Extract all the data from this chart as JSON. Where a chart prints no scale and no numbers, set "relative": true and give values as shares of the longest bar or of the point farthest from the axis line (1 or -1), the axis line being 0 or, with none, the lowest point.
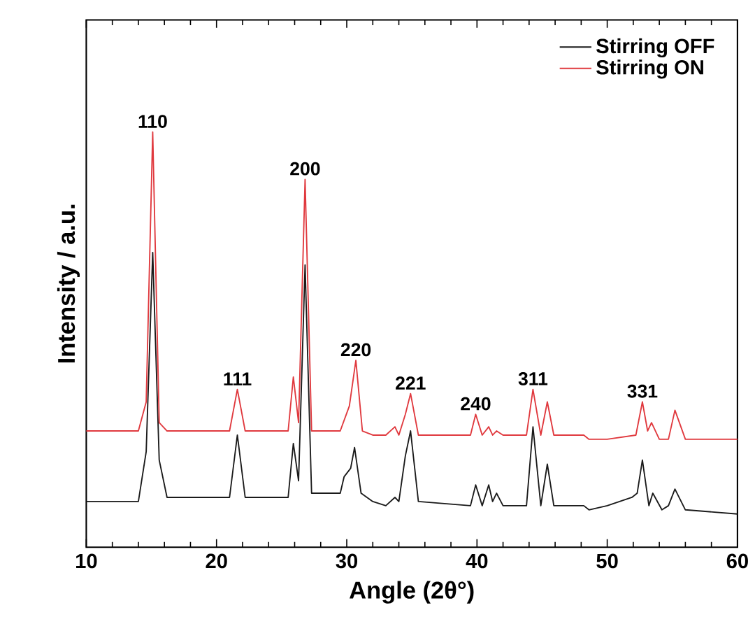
{
  "chart_data": {
    "type": "line",
    "xlabel": "Angle (2θ°)",
    "ylabel": "Intensity / a.u.",
    "relative": true,
    "xlim": [
      10,
      60
    ],
    "xticks": [
      10,
      20,
      30,
      40,
      50,
      60
    ],
    "tick_labels": "x",
    "legend": "top right",
    "grid": false,
    "marker": "none",
    "line_style": "solid",
    "series": [
      {
        "name": "Stirring OFF",
        "color": "#1a1a1a",
        "x": [
          10,
          14.0,
          14.6,
          15.1,
          15.6,
          16.2,
          21.0,
          21.6,
          22.2,
          25.5,
          25.9,
          26.3,
          26.8,
          27.3,
          29.5,
          29.8,
          30.3,
          30.6,
          31.1,
          32.0,
          33.0,
          33.7,
          34.0,
          34.5,
          34.9,
          35.5,
          39.5,
          39.9,
          40.4,
          40.9,
          41.2,
          41.5,
          42.0,
          43.8,
          44.3,
          44.9,
          45.4,
          45.9,
          48.2,
          48.6,
          50.0,
          51.9,
          52.3,
          52.7,
          53.2,
          53.5,
          54.2,
          54.7,
          55.2,
          56.0,
          60
        ],
        "values": [
          0.11,
          0.11,
          0.23,
          0.71,
          0.21,
          0.12,
          0.12,
          0.27,
          0.12,
          0.12,
          0.25,
          0.16,
          0.68,
          0.13,
          0.13,
          0.17,
          0.19,
          0.24,
          0.13,
          0.11,
          0.1,
          0.12,
          0.11,
          0.22,
          0.28,
          0.11,
          0.1,
          0.15,
          0.1,
          0.15,
          0.11,
          0.13,
          0.1,
          0.1,
          0.29,
          0.1,
          0.2,
          0.1,
          0.1,
          0.09,
          0.1,
          0.12,
          0.13,
          0.21,
          0.1,
          0.13,
          0.09,
          0.1,
          0.14,
          0.09,
          0.08
        ]
      },
      {
        "name": "Stirring ON",
        "color": "#e0393e",
        "x": [
          10,
          14.0,
          14.6,
          15.1,
          15.6,
          16.2,
          21.0,
          21.6,
          22.2,
          25.5,
          25.9,
          26.3,
          26.8,
          27.3,
          29.5,
          30.2,
          30.7,
          31.2,
          32.0,
          33.0,
          33.7,
          34.0,
          34.5,
          34.9,
          35.5,
          39.5,
          39.9,
          40.4,
          40.9,
          41.2,
          41.5,
          42.0,
          43.8,
          44.3,
          44.9,
          45.4,
          45.9,
          48.2,
          48.6,
          50.0,
          52.2,
          52.7,
          53.1,
          53.4,
          54.0,
          54.7,
          55.2,
          56.0,
          60
        ],
        "values": [
          0.28,
          0.28,
          0.35,
          1.0,
          0.3,
          0.28,
          0.28,
          0.38,
          0.28,
          0.28,
          0.41,
          0.3,
          0.886,
          0.28,
          0.28,
          0.34,
          0.45,
          0.28,
          0.27,
          0.27,
          0.29,
          0.27,
          0.32,
          0.37,
          0.27,
          0.27,
          0.32,
          0.27,
          0.29,
          0.27,
          0.28,
          0.27,
          0.27,
          0.38,
          0.27,
          0.35,
          0.27,
          0.27,
          0.26,
          0.26,
          0.27,
          0.35,
          0.28,
          0.3,
          0.26,
          0.26,
          0.33,
          0.26,
          0.26
        ]
      }
    ],
    "annotations": [
      {
        "text": "110",
        "x": 15.1,
        "y": 1.0
      },
      {
        "text": "111",
        "x": 21.6,
        "y": 0.38
      },
      {
        "text": "200",
        "x": 26.8,
        "y": 0.886
      },
      {
        "text": "220",
        "x": 30.7,
        "y": 0.45
      },
      {
        "text": "221",
        "x": 34.9,
        "y": 0.37
      },
      {
        "text": "240",
        "x": 39.9,
        "y": 0.32
      },
      {
        "text": "311",
        "x": 44.3,
        "y": 0.38
      },
      {
        "text": "331",
        "x": 52.7,
        "y": 0.35
      }
    ]
  }
}
